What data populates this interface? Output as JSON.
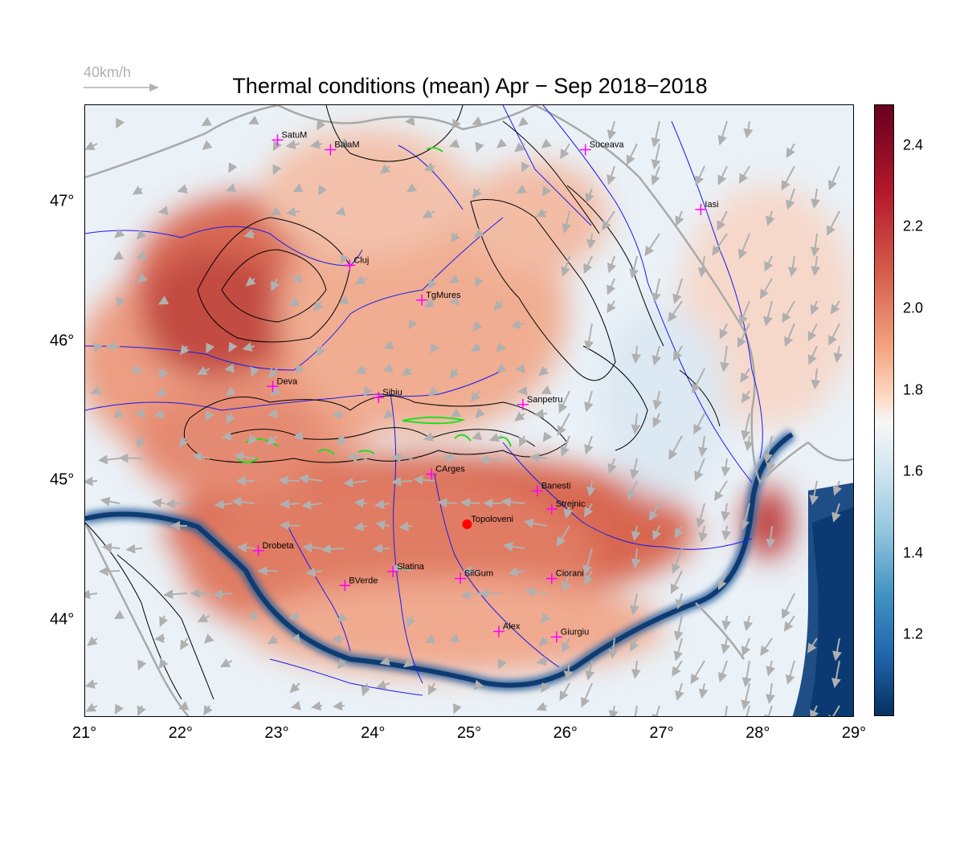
{
  "title": "Thermal conditions (mean) Apr − Sep  2018−2018",
  "scale": {
    "label": "40km/h"
  },
  "colors": {
    "land_low": "#2166ac",
    "land_mid": "#f7f7f7",
    "land_high": "#b2182b",
    "rivers": "#0000ee",
    "borders": "#a0a0a0",
    "contours": "#000000",
    "wind": "#b0b0b0",
    "cities": "#ff00ff",
    "peaks": "#00ee00"
  },
  "x_ticks": [
    "21°",
    "22°",
    "23°",
    "24°",
    "25°",
    "26°",
    "27°",
    "28°",
    "29°"
  ],
  "y_ticks": [
    "47°",
    "46°",
    "45°",
    "44°"
  ],
  "colorbar": {
    "ticks": [
      "2.4",
      "2.2",
      "2.0",
      "1.8",
      "1.6",
      "1.4",
      "1.2"
    ],
    "min": 1.0,
    "max": 2.5
  },
  "cities": [
    {
      "name": "SatuM",
      "lon": 23.0,
      "lat": 47.45
    },
    {
      "name": "BaiaM",
      "lon": 23.55,
      "lat": 47.38
    },
    {
      "name": "Suceava",
      "lon": 26.2,
      "lat": 47.38
    },
    {
      "name": "Iasi",
      "lon": 27.4,
      "lat": 46.95
    },
    {
      "name": "Cluj",
      "lon": 23.75,
      "lat": 46.55
    },
    {
      "name": "TgMures",
      "lon": 24.5,
      "lat": 46.3
    },
    {
      "name": "Deva",
      "lon": 22.95,
      "lat": 45.68
    },
    {
      "name": "Sibiu",
      "lon": 24.05,
      "lat": 45.6
    },
    {
      "name": "Sanpetru",
      "lon": 25.55,
      "lat": 45.55
    },
    {
      "name": "CArges",
      "lon": 24.6,
      "lat": 45.05
    },
    {
      "name": "Banesti",
      "lon": 25.7,
      "lat": 44.93
    },
    {
      "name": "Strejnic",
      "lon": 25.85,
      "lat": 44.8
    },
    {
      "name": "Topoloveni",
      "lon": 24.97,
      "lat": 44.69,
      "marker": "dot"
    },
    {
      "name": "Drobeta",
      "lon": 22.8,
      "lat": 44.5
    },
    {
      "name": "Slatina",
      "lon": 24.2,
      "lat": 44.35
    },
    {
      "name": "SilGum",
      "lon": 24.9,
      "lat": 44.3
    },
    {
      "name": "Ciorani",
      "lon": 25.85,
      "lat": 44.3
    },
    {
      "name": "BVerde",
      "lon": 23.7,
      "lat": 44.25
    },
    {
      "name": "Alex",
      "lon": 25.3,
      "lat": 43.92
    },
    {
      "name": "Giurgiu",
      "lon": 25.9,
      "lat": 43.88
    }
  ]
}
